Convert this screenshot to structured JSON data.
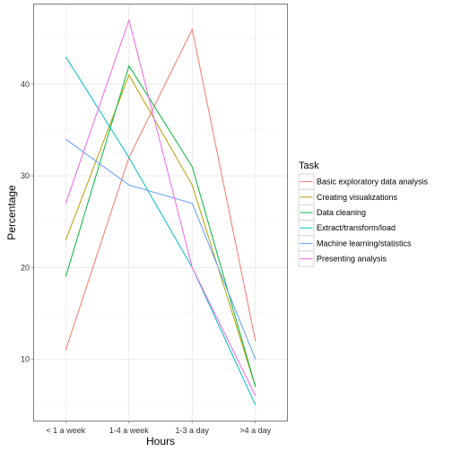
{
  "chart_data": {
    "type": "line",
    "title": "",
    "xlabel": "Hours",
    "ylabel": "Percentage",
    "categories": [
      "< 1 a week",
      "1-4 a week",
      "1-3 a day",
      ">4 a day"
    ],
    "yticks": [
      "10",
      "20",
      "30",
      "40"
    ],
    "ylim": [
      3.3,
      48.7
    ],
    "grid": true,
    "legend": {
      "title": "Task",
      "placement": "right"
    },
    "series": [
      {
        "name": "Basic exploratory data analysis",
        "color": "#F8766D",
        "values": [
          11,
          32,
          46,
          12
        ]
      },
      {
        "name": "Creating visualizations",
        "color": "#B79F00",
        "values": [
          23,
          41,
          29,
          7
        ]
      },
      {
        "name": "Data cleaning",
        "color": "#00BA38",
        "values": [
          19,
          42,
          31,
          7
        ]
      },
      {
        "name": "Extract/transform/load",
        "color": "#00BFC4",
        "values": [
          43,
          32,
          20,
          5
        ]
      },
      {
        "name": "Machine learning/statistics",
        "color": "#619CFF",
        "values": [
          34,
          29,
          27,
          10
        ]
      },
      {
        "name": "Presenting analysis",
        "color": "#F564E3",
        "values": [
          27,
          47,
          20,
          6
        ]
      }
    ]
  }
}
